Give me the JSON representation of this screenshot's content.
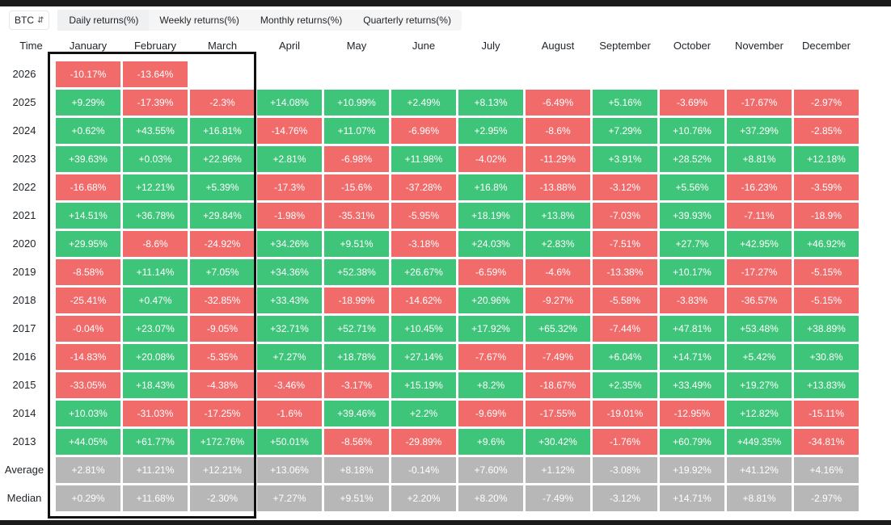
{
  "toolbar": {
    "asset": "BTC",
    "tabs": [
      "Daily returns(%)",
      "Weekly returns(%)",
      "Monthly returns(%)",
      "Quarterly returns(%)"
    ]
  },
  "table": {
    "time_label": "Time",
    "months": [
      "January",
      "February",
      "March",
      "April",
      "May",
      "June",
      "July",
      "August",
      "September",
      "October",
      "November",
      "December"
    ],
    "rows": [
      {
        "label": "2026",
        "values": [
          "-10.17%",
          "-13.64%",
          "",
          "",
          "",
          "",
          "",
          "",
          "",
          "",
          "",
          ""
        ]
      },
      {
        "label": "2025",
        "values": [
          "+9.29%",
          "-17.39%",
          "-2.3%",
          "+14.08%",
          "+10.99%",
          "+2.49%",
          "+8.13%",
          "-6.49%",
          "+5.16%",
          "-3.69%",
          "-17.67%",
          "-2.97%"
        ]
      },
      {
        "label": "2024",
        "values": [
          "+0.62%",
          "+43.55%",
          "+16.81%",
          "-14.76%",
          "+11.07%",
          "-6.96%",
          "+2.95%",
          "-8.6%",
          "+7.29%",
          "+10.76%",
          "+37.29%",
          "-2.85%"
        ]
      },
      {
        "label": "2023",
        "values": [
          "+39.63%",
          "+0.03%",
          "+22.96%",
          "+2.81%",
          "-6.98%",
          "+11.98%",
          "-4.02%",
          "-11.29%",
          "+3.91%",
          "+28.52%",
          "+8.81%",
          "+12.18%"
        ]
      },
      {
        "label": "2022",
        "values": [
          "-16.68%",
          "+12.21%",
          "+5.39%",
          "-17.3%",
          "-15.6%",
          "-37.28%",
          "+16.8%",
          "-13.88%",
          "-3.12%",
          "+5.56%",
          "-16.23%",
          "-3.59%"
        ]
      },
      {
        "label": "2021",
        "values": [
          "+14.51%",
          "+36.78%",
          "+29.84%",
          "-1.98%",
          "-35.31%",
          "-5.95%",
          "+18.19%",
          "+13.8%",
          "-7.03%",
          "+39.93%",
          "-7.11%",
          "-18.9%"
        ]
      },
      {
        "label": "2020",
        "values": [
          "+29.95%",
          "-8.6%",
          "-24.92%",
          "+34.26%",
          "+9.51%",
          "-3.18%",
          "+24.03%",
          "+2.83%",
          "-7.51%",
          "+27.7%",
          "+42.95%",
          "+46.92%"
        ]
      },
      {
        "label": "2019",
        "values": [
          "-8.58%",
          "+11.14%",
          "+7.05%",
          "+34.36%",
          "+52.38%",
          "+26.67%",
          "-6.59%",
          "-4.6%",
          "-13.38%",
          "+10.17%",
          "-17.27%",
          "-5.15%"
        ]
      },
      {
        "label": "2018",
        "values": [
          "-25.41%",
          "+0.47%",
          "-32.85%",
          "+33.43%",
          "-18.99%",
          "-14.62%",
          "+20.96%",
          "-9.27%",
          "-5.58%",
          "-3.83%",
          "-36.57%",
          "-5.15%"
        ]
      },
      {
        "label": "2017",
        "values": [
          "-0.04%",
          "+23.07%",
          "-9.05%",
          "+32.71%",
          "+52.71%",
          "+10.45%",
          "+17.92%",
          "+65.32%",
          "-7.44%",
          "+47.81%",
          "+53.48%",
          "+38.89%"
        ]
      },
      {
        "label": "2016",
        "values": [
          "-14.83%",
          "+20.08%",
          "-5.35%",
          "+7.27%",
          "+18.78%",
          "+27.14%",
          "-7.67%",
          "-7.49%",
          "+6.04%",
          "+14.71%",
          "+5.42%",
          "+30.8%"
        ]
      },
      {
        "label": "2015",
        "values": [
          "-33.05%",
          "+18.43%",
          "-4.38%",
          "-3.46%",
          "-3.17%",
          "+15.19%",
          "+8.2%",
          "-18.67%",
          "+2.35%",
          "+33.49%",
          "+19.27%",
          "+13.83%"
        ]
      },
      {
        "label": "2014",
        "values": [
          "+10.03%",
          "-31.03%",
          "-17.25%",
          "-1.6%",
          "+39.46%",
          "+2.2%",
          "-9.69%",
          "-17.55%",
          "-19.01%",
          "-12.95%",
          "+12.82%",
          "-15.11%"
        ]
      },
      {
        "label": "2013",
        "values": [
          "+44.05%",
          "+61.77%",
          "+172.76%",
          "+50.01%",
          "-8.56%",
          "-29.89%",
          "+9.6%",
          "+30.42%",
          "-1.76%",
          "+60.79%",
          "+449.35%",
          "-34.81%"
        ]
      }
    ],
    "stats": [
      {
        "label": "Average",
        "values": [
          "+2.81%",
          "+11.21%",
          "+12.21%",
          "+13.06%",
          "+8.18%",
          "-0.14%",
          "+7.60%",
          "+1.12%",
          "-3.08%",
          "+19.92%",
          "+41.12%",
          "+4.16%"
        ]
      },
      {
        "label": "Median",
        "values": [
          "+0.29%",
          "+11.68%",
          "-2.30%",
          "+7.27%",
          "+9.51%",
          "+2.20%",
          "+8.20%",
          "-7.49%",
          "-3.12%",
          "+14.71%",
          "+8.81%",
          "-2.97%"
        ]
      }
    ],
    "colors": {
      "positive": "#3fc57a",
      "negative": "#f26b6b",
      "stat": "#b7b7b7"
    }
  }
}
